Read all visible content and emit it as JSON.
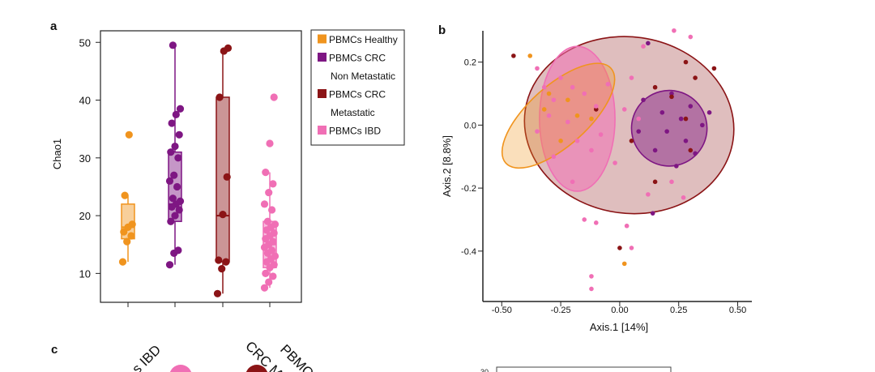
{
  "panels": {
    "a": "a",
    "b": "b",
    "c": "c"
  },
  "panel_c_labels": [
    "s IBD",
    "CRC M",
    "PBMC"
  ],
  "panel_c_tick": "30",
  "legend": [
    {
      "label": "PBMCs Healthy",
      "color": "#F0941E"
    },
    {
      "label": "PBMCs CRC",
      "color": "#7E1683"
    },
    {
      "label": "Non Metastatic",
      "color": null
    },
    {
      "label": "PBMCs CRC",
      "color": "#8B1416"
    },
    {
      "label": "Metastatic",
      "color": null
    },
    {
      "label": "PBMCs IBD",
      "color": "#F06FB5"
    }
  ],
  "chart_data": [
    {
      "type": "box",
      "ylabel": "Chao1",
      "xlabel": "",
      "ylim": [
        5,
        52
      ],
      "yticks": [
        10,
        20,
        30,
        40,
        50
      ],
      "groups": [
        {
          "name": "PBMCs Healthy",
          "color": "#F0941E",
          "whisker_low": 12,
          "q1": 16,
          "median": 18,
          "q3": 22,
          "whisker_high": 23.5,
          "points": [
            12,
            15.5,
            16.5,
            17.2,
            18,
            18.5,
            23.5,
            34
          ]
        },
        {
          "name": "PBMCs CRC Non Metastatic",
          "color": "#7E1683",
          "whisker_low": 11.5,
          "q1": 19,
          "median": 22,
          "q3": 31,
          "whisker_high": 49.5,
          "points": [
            11.5,
            13.5,
            14,
            19,
            20,
            21,
            21.5,
            22,
            22.5,
            23,
            25,
            26,
            27,
            30,
            31,
            32,
            34,
            36,
            37.5,
            38.5,
            49.5
          ]
        },
        {
          "name": "PBMCs CRC Metastatic",
          "color": "#8B1416",
          "whisker_low": 6.5,
          "q1": 12,
          "median": 20,
          "q3": 40.5,
          "whisker_high": 49,
          "points": [
            6.5,
            10.8,
            12,
            12.3,
            20.2,
            26.7,
            40.5,
            48.5,
            49
          ]
        },
        {
          "name": "PBMCs IBD",
          "color": "#F06FB5",
          "whisker_low": 7.5,
          "q1": 11,
          "median": 15,
          "q3": 19,
          "whisker_high": 27.5,
          "points": [
            7.5,
            8.5,
            9.5,
            10,
            11,
            11.5,
            12,
            12.5,
            13,
            13.5,
            14,
            14.5,
            15,
            15.5,
            16,
            16.5,
            17,
            17.5,
            18,
            18.5,
            19,
            21,
            22,
            24,
            25.5,
            27.5,
            32.5,
            40.5
          ]
        }
      ]
    },
    {
      "type": "scatter",
      "xlabel": "Axis.1  [14%]",
      "ylabel": "Axis.2  [8.8%]",
      "xlim": [
        -0.58,
        0.56
      ],
      "ylim": [
        -0.56,
        0.32
      ],
      "xticks": [
        -0.5,
        -0.25,
        0.0,
        0.25,
        0.5
      ],
      "xtick_labels": [
        "-0.50",
        "-0.25",
        "0.00",
        "0.25",
        "0.50"
      ],
      "yticks": [
        -0.4,
        -0.2,
        0.0,
        0.2
      ],
      "ytick_labels": [
        "-0.4",
        "-0.2",
        "0.0",
        "0.2"
      ],
      "ellipses": [
        {
          "group": "PBMCs CRC Metastatic",
          "color": "#8B1416",
          "cx": 0.04,
          "cy": 0.0,
          "rx": 0.445,
          "ry": 0.28,
          "angle": -8,
          "opacity": 0.28
        },
        {
          "group": "PBMCs IBD",
          "color": "#F06FB5",
          "cx": -0.18,
          "cy": 0.02,
          "rx": 0.16,
          "ry": 0.23,
          "angle": 0,
          "opacity": 0.55
        },
        {
          "group": "PBMCs Healthy",
          "color": "#F0941E",
          "cx": -0.26,
          "cy": 0.03,
          "rx": 0.3,
          "ry": 0.095,
          "angle": 42,
          "opacity": 0.3
        },
        {
          "group": "PBMCs CRC Non Metastatic",
          "color": "#7E1683",
          "cx": 0.21,
          "cy": -0.01,
          "rx": 0.16,
          "ry": 0.12,
          "angle": -8,
          "opacity": 0.45
        }
      ],
      "series": [
        {
          "name": "PBMCs Healthy",
          "color": "#F0941E",
          "points": [
            [
              -0.38,
              0.22
            ],
            [
              -0.3,
              0.1
            ],
            [
              -0.22,
              0.08
            ],
            [
              -0.18,
              0.03
            ],
            [
              -0.12,
              0.02
            ],
            [
              -0.32,
              0.05
            ],
            [
              -0.25,
              -0.05
            ],
            [
              0.02,
              -0.44
            ]
          ]
        },
        {
          "name": "PBMCs CRC Non Metastatic",
          "color": "#7E1683",
          "points": [
            [
              0.12,
              0.26
            ],
            [
              0.22,
              0.1
            ],
            [
              0.3,
              0.06
            ],
            [
              0.18,
              0.04
            ],
            [
              0.26,
              0.02
            ],
            [
              0.35,
              0.0
            ],
            [
              0.2,
              -0.02
            ],
            [
              0.28,
              -0.05
            ],
            [
              0.15,
              -0.08
            ],
            [
              0.32,
              -0.09
            ],
            [
              0.1,
              0.08
            ],
            [
              0.38,
              0.04
            ],
            [
              0.24,
              -0.13
            ],
            [
              0.08,
              -0.02
            ],
            [
              0.14,
              -0.28
            ]
          ]
        },
        {
          "name": "PBMCs CRC Metastatic",
          "color": "#8B1416",
          "points": [
            [
              -0.45,
              0.22
            ],
            [
              0.28,
              0.2
            ],
            [
              0.4,
              0.18
            ],
            [
              0.32,
              0.15
            ],
            [
              0.15,
              0.12
            ],
            [
              0.22,
              0.09
            ],
            [
              -0.1,
              0.05
            ],
            [
              0.28,
              0.02
            ],
            [
              0.05,
              -0.05
            ],
            [
              0.15,
              -0.18
            ],
            [
              0.0,
              -0.39
            ],
            [
              0.3,
              -0.08
            ]
          ]
        },
        {
          "name": "PBMCs IBD",
          "color": "#F06FB5",
          "points": [
            [
              0.23,
              0.3
            ],
            [
              0.3,
              0.28
            ],
            [
              0.1,
              0.25
            ],
            [
              -0.35,
              0.18
            ],
            [
              -0.25,
              0.15
            ],
            [
              -0.32,
              0.12
            ],
            [
              -0.2,
              0.12
            ],
            [
              -0.28,
              0.08
            ],
            [
              -0.15,
              0.1
            ],
            [
              -0.1,
              0.06
            ],
            [
              -0.3,
              0.03
            ],
            [
              -0.22,
              0.01
            ],
            [
              -0.35,
              -0.02
            ],
            [
              -0.18,
              -0.05
            ],
            [
              -0.08,
              -0.03
            ],
            [
              -0.12,
              -0.08
            ],
            [
              -0.05,
              0.13
            ],
            [
              0.02,
              0.05
            ],
            [
              0.05,
              0.15
            ],
            [
              -0.02,
              -0.12
            ],
            [
              -0.28,
              -0.1
            ],
            [
              -0.2,
              -0.18
            ],
            [
              -0.15,
              -0.3
            ],
            [
              -0.1,
              -0.31
            ],
            [
              0.03,
              -0.32
            ],
            [
              0.05,
              -0.39
            ],
            [
              -0.12,
              -0.48
            ],
            [
              -0.12,
              -0.52
            ],
            [
              0.27,
              -0.23
            ],
            [
              0.22,
              -0.18
            ],
            [
              0.12,
              -0.22
            ],
            [
              0.08,
              0.02
            ]
          ]
        }
      ]
    }
  ]
}
